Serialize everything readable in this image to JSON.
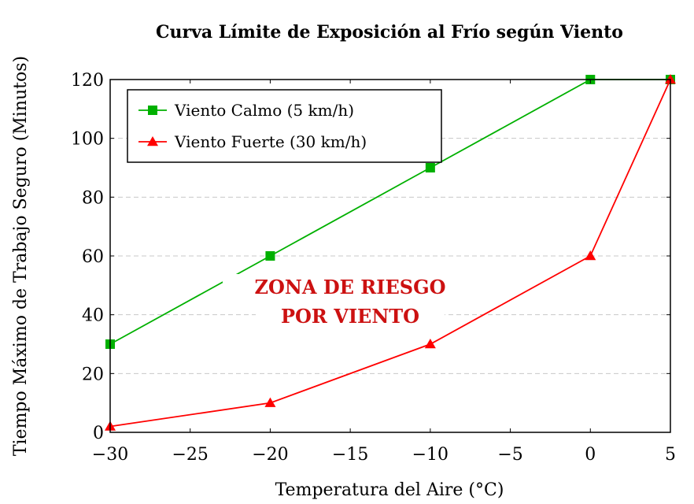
{
  "chart_data": {
    "type": "line",
    "title": "Curva Límite de Exposición al Frío según Viento",
    "xlabel": "Temperatura del Aire (°C)",
    "ylabel": "Tiempo Máximo de Trabajo Seguro (Minutos)",
    "xlim": [
      -30,
      5
    ],
    "ylim": [
      0,
      120
    ],
    "x_ticks": [
      -30,
      -25,
      -20,
      -15,
      -10,
      -5,
      0,
      5
    ],
    "x_tick_labels": [
      "−30",
      "−25",
      "−20",
      "−15",
      "−10",
      "−5",
      "0",
      "5"
    ],
    "y_ticks": [
      0,
      20,
      40,
      60,
      80,
      100,
      120
    ],
    "y_tick_labels": [
      "0",
      "20",
      "40",
      "60",
      "80",
      "100",
      "120"
    ],
    "grid": "horizontal dashed",
    "legend_position": "top-left",
    "series": [
      {
        "name": "Viento Calmo (5 km/h)",
        "color": "#00b000",
        "marker": "square",
        "x": [
          -30,
          -20,
          -10,
          0,
          5
        ],
        "y": [
          30,
          60,
          90,
          120,
          120
        ]
      },
      {
        "name": "Viento Fuerte (30 km/h)",
        "color": "#ff0000",
        "marker": "triangle",
        "x": [
          -30,
          -20,
          -10,
          0,
          5
        ],
        "y": [
          2,
          10,
          30,
          60,
          120
        ]
      }
    ],
    "annotation": {
      "lines": [
        "ZONA DE RIESGO",
        "POR VIENTO"
      ],
      "color": "#cc1111"
    }
  }
}
